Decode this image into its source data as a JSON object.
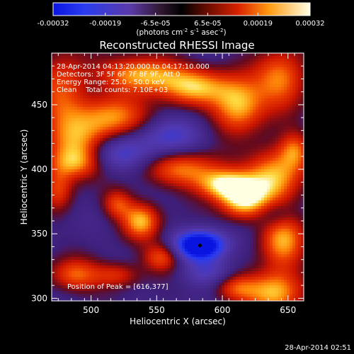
{
  "chart_data": {
    "type": "heatmap",
    "title": "Reconstructed RHESSI Image",
    "xlabel": "Heliocentric X (arcsec)",
    "ylabel": "Heliocentric Y (arcsec)",
    "xlim": [
      470,
      662
    ],
    "ylim": [
      298,
      490
    ],
    "x_ticks": [
      500,
      550,
      600,
      650
    ],
    "y_ticks": [
      300,
      350,
      400,
      450
    ],
    "colorbar": {
      "range": [
        -0.00032,
        0.00032
      ],
      "tick_values": [
        -0.00032,
        -0.00019,
        -6.5e-05,
        6.5e-05,
        0.00019,
        0.00032
      ],
      "tick_labels": [
        "-0.00032",
        "-0.00019",
        "-6.5e-05",
        "6.5e-05",
        "0.00019",
        "0.00032"
      ],
      "unit_label": "(photons cm",
      "unit_exp1": "-2",
      "unit_mid": " s",
      "unit_exp2": "-1",
      "unit_mid2": " asec",
      "unit_exp3": "-2",
      "unit_close": ")"
    },
    "annotations": [
      "28-Apr-2014 04:13:20.000 to 04:17:10.000",
      "Detectors: 3F 5F 6F 7F 8F 9F, Att 0",
      "Energy Range: 25.0 - 50.0 keV",
      "Clean    Total counts: 7.10E+03"
    ],
    "peak_text": "Position of Peak = [616,377]",
    "peak": [
      616,
      377
    ],
    "marker": [
      583,
      341
    ],
    "blobs": [
      {
        "x": 478,
        "y": 458,
        "a": 0.6,
        "sx": 14,
        "sy": 26
      },
      {
        "x": 515,
        "y": 440,
        "a": 0.75,
        "sx": 20,
        "sy": 12
      },
      {
        "x": 492,
        "y": 420,
        "a": 0.55,
        "sx": 16,
        "sy": 12
      },
      {
        "x": 540,
        "y": 473,
        "a": 0.9,
        "sx": 22,
        "sy": 10
      },
      {
        "x": 580,
        "y": 463,
        "a": 0.75,
        "sx": 18,
        "sy": 10
      },
      {
        "x": 612,
        "y": 450,
        "a": 0.9,
        "sx": 14,
        "sy": 15
      },
      {
        "x": 645,
        "y": 470,
        "a": 0.75,
        "sx": 14,
        "sy": 16
      },
      {
        "x": 488,
        "y": 405,
        "a": 0.7,
        "sx": 14,
        "sy": 9
      },
      {
        "x": 475,
        "y": 385,
        "a": 0.55,
        "sx": 8,
        "sy": 12
      },
      {
        "x": 572,
        "y": 400,
        "a": 0.7,
        "sx": 22,
        "sy": 10
      },
      {
        "x": 616,
        "y": 377,
        "a": 1.0,
        "sx": 13,
        "sy": 11
      },
      {
        "x": 600,
        "y": 388,
        "a": 0.8,
        "sx": 14,
        "sy": 8
      },
      {
        "x": 640,
        "y": 395,
        "a": 0.85,
        "sx": 15,
        "sy": 16
      },
      {
        "x": 655,
        "y": 415,
        "a": 0.55,
        "sx": 8,
        "sy": 10
      },
      {
        "x": 520,
        "y": 373,
        "a": 0.55,
        "sx": 8,
        "sy": 8
      },
      {
        "x": 538,
        "y": 360,
        "a": 0.85,
        "sx": 10,
        "sy": 10
      },
      {
        "x": 554,
        "y": 332,
        "a": 0.65,
        "sx": 10,
        "sy": 8
      },
      {
        "x": 488,
        "y": 318,
        "a": 0.65,
        "sx": 14,
        "sy": 9
      },
      {
        "x": 520,
        "y": 318,
        "a": 0.5,
        "sx": 12,
        "sy": 7
      },
      {
        "x": 646,
        "y": 345,
        "a": 0.8,
        "sx": 12,
        "sy": 16
      },
      {
        "x": 640,
        "y": 305,
        "a": 0.85,
        "sx": 15,
        "sy": 12
      },
      {
        "x": 610,
        "y": 308,
        "a": 0.6,
        "sx": 12,
        "sy": 8
      },
      {
        "x": 583,
        "y": 341,
        "a": -1.3,
        "sx": 14,
        "sy": 8
      },
      {
        "x": 520,
        "y": 412,
        "a": -0.55,
        "sx": 20,
        "sy": 10
      },
      {
        "x": 560,
        "y": 425,
        "a": -0.5,
        "sx": 18,
        "sy": 10
      },
      {
        "x": 590,
        "y": 320,
        "a": -0.45,
        "sx": 14,
        "sy": 8
      },
      {
        "x": 640,
        "y": 365,
        "a": -0.35,
        "sx": 10,
        "sy": 8
      }
    ]
  },
  "footer_timestamp": "28-Apr-2014 02:51"
}
